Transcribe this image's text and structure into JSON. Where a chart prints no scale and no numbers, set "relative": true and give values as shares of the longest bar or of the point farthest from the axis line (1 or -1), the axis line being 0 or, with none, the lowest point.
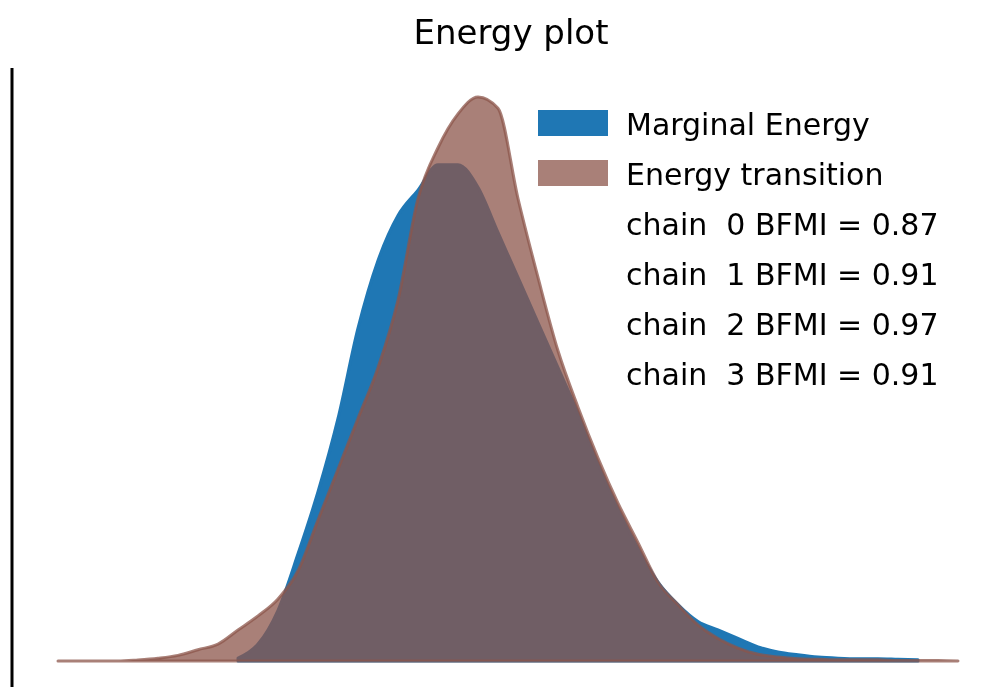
{
  "chart_data": {
    "type": "area",
    "title": "Energy plot",
    "relative": true,
    "legend": "top right",
    "categories": [
      null,
      null,
      null,
      null,
      null,
      null,
      null,
      null,
      null,
      null,
      null,
      null,
      null,
      null,
      null,
      null,
      null,
      null,
      null,
      null,
      null,
      null,
      null,
      null,
      null,
      null,
      null,
      null,
      null,
      null,
      null,
      null,
      null,
      null,
      null,
      null,
      null,
      null,
      null,
      null,
      null,
      null,
      null,
      null,
      null,
      null
    ],
    "series": [
      {
        "name": "Marginal Energy",
        "color": "#1f77b4",
        "values": [
          null,
          null,
          null,
          null,
          null,
          null,
          null,
          null,
          null,
          0.005,
          0.03,
          0.09,
          0.19,
          0.3,
          0.43,
          0.59,
          0.71,
          0.79,
          0.835,
          0.88,
          0.88,
          0.84,
          0.76,
          0.68,
          0.6,
          0.52,
          0.44,
          0.35,
          0.27,
          0.2,
          0.14,
          0.1,
          0.07,
          0.055,
          0.04,
          0.025,
          0.016,
          0.011,
          0.007,
          0.005,
          0.004,
          0.004,
          0.003,
          0.002,
          null,
          null
        ]
      },
      {
        "name": "Energy transition",
        "color": "#8c564b",
        "values": [
          0,
          0,
          0,
          0,
          0.002,
          0.005,
          0.01,
          0.02,
          0.03,
          0.055,
          0.08,
          0.11,
          0.16,
          0.25,
          0.34,
          0.43,
          0.52,
          0.64,
          0.82,
          0.91,
          0.97,
          1,
          0.98,
          0.82,
          0.68,
          0.55,
          0.45,
          0.36,
          0.28,
          0.21,
          0.14,
          0.1,
          0.064,
          0.04,
          0.023,
          0.012,
          0.007,
          0.004,
          0.003,
          0.002,
          0.002,
          0.002,
          0.001,
          0.001,
          0.001,
          0
        ]
      }
    ],
    "annotations": [
      "chain  0 BFMI = 0.87",
      "chain  1 BFMI = 0.91",
      "chain  2 BFMI = 0.97",
      "chain  3 BFMI = 0.91"
    ]
  }
}
